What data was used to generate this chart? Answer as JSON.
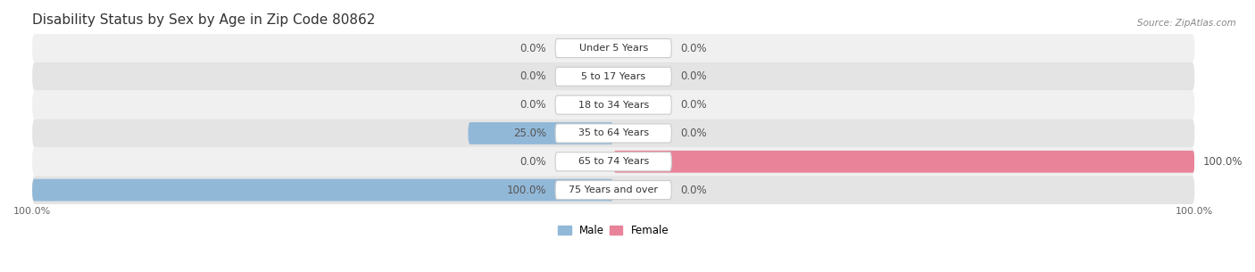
{
  "title": "Disability Status by Sex by Age in Zip Code 80862",
  "source": "Source: ZipAtlas.com",
  "categories": [
    "Under 5 Years",
    "5 to 17 Years",
    "18 to 34 Years",
    "35 to 64 Years",
    "65 to 74 Years",
    "75 Years and over"
  ],
  "male_values": [
    0.0,
    0.0,
    0.0,
    25.0,
    0.0,
    100.0
  ],
  "female_values": [
    0.0,
    0.0,
    0.0,
    0.0,
    100.0,
    0.0
  ],
  "male_color": "#92b8d8",
  "female_color": "#e8839a",
  "row_bg_color_light": "#f0f0f0",
  "row_bg_color_dark": "#e4e4e4",
  "title_fontsize": 11,
  "label_fontsize": 8.5,
  "tick_fontsize": 8,
  "max_val": 100.0,
  "figsize": [
    14.06,
    3.05
  ],
  "dpi": 100
}
